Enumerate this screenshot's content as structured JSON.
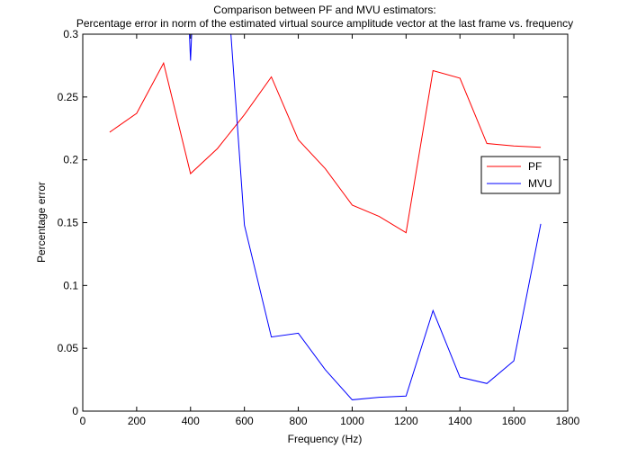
{
  "chart_data": {
    "type": "line",
    "title": [
      "Comparison between PF and MVU estimators:",
      "Percentage error in norm of the estimated virtual source amplitude vector at the last frame vs. frequency"
    ],
    "xlabel": "Frequency (Hz)",
    "ylabel": "Percentage error",
    "xlim": [
      0,
      1800
    ],
    "ylim": [
      0,
      0.3
    ],
    "xticks": [
      0,
      200,
      400,
      600,
      800,
      1000,
      1200,
      1400,
      1600,
      1800
    ],
    "yticks": [
      0,
      0.05,
      0.1,
      0.15,
      0.2,
      0.25,
      0.3
    ],
    "ytick_labels": [
      "0",
      "0.05",
      "0.1",
      "0.15",
      "0.2",
      "0.25",
      "0.3"
    ],
    "grid": false,
    "legend_position": "right",
    "series": [
      {
        "name": "PF",
        "color": "#ff0000",
        "x": [
          100,
          200,
          300,
          400,
          500,
          600,
          700,
          800,
          900,
          1000,
          1100,
          1200,
          1300,
          1400,
          1500,
          1600,
          1700
        ],
        "y": [
          0.222,
          0.237,
          0.277,
          0.189,
          0.209,
          0.236,
          0.266,
          0.216,
          0.193,
          0.164,
          0.155,
          0.142,
          0.271,
          0.265,
          0.213,
          0.211,
          0.21
        ]
      },
      {
        "name": "MVU",
        "color": "#0000ff",
        "x": [
          390,
          400,
          410,
          540,
          600,
          700,
          800,
          900,
          1000,
          1100,
          1200,
          1300,
          1400,
          1500,
          1600,
          1700
        ],
        "y": [
          0.33,
          0.279,
          0.33,
          0.33,
          0.148,
          0.059,
          0.062,
          0.033,
          0.009,
          0.011,
          0.012,
          0.08,
          0.027,
          0.022,
          0.04,
          0.149
        ]
      }
    ]
  }
}
